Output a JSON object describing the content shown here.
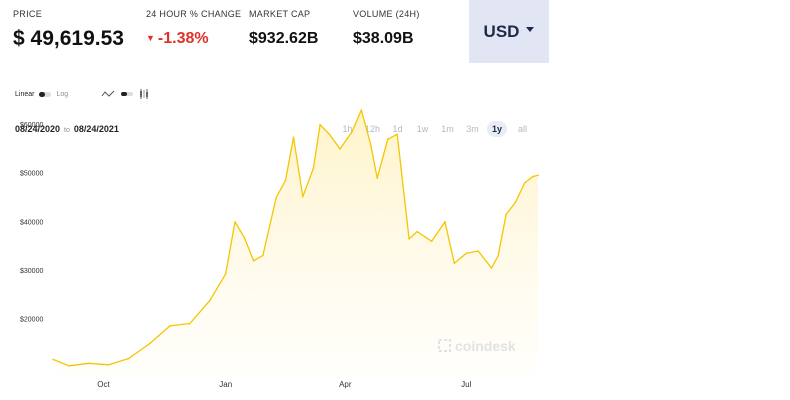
{
  "stats": {
    "price_label": "PRICE",
    "price_value": "$ 49,619.53",
    "change_label": "24 HOUR % CHANGE",
    "change_value": "-1.38%",
    "marketcap_label": "MARKET CAP",
    "marketcap_value": "$932.62B",
    "volume_label": "VOLUME (24H)",
    "volume_value": "$38.09B"
  },
  "currency": {
    "label": "USD"
  },
  "controls": {
    "scale_linear": "Linear",
    "scale_log": "Log",
    "scale_selected": "Linear",
    "date_start": "08/24/2020",
    "date_to": "to",
    "date_end": "08/24/2021",
    "ranges": [
      "1h",
      "12h",
      "1d",
      "1w",
      "1m",
      "3m",
      "1y",
      "all"
    ],
    "active_range": "1y",
    "chart_type_icons": [
      "line-chart-icon",
      "toggle-icon",
      "candlestick-icon"
    ]
  },
  "watermark": "coindesk",
  "colors": {
    "line": "#f5c500",
    "fill": "#fff3c7",
    "negative": "#e0302a",
    "currency_bg": "#e2e6f4"
  },
  "chart_data": {
    "type": "area",
    "x_ticks": [
      "Oct",
      "Jan",
      "Apr",
      "Jul"
    ],
    "y_ticks": [
      "$20000",
      "$30000",
      "$40000",
      "$50000",
      "$60000"
    ],
    "ylim": [
      8500,
      63000
    ],
    "x": [
      "2020-08-24",
      "2020-09-05",
      "2020-09-20",
      "2020-10-05",
      "2020-10-20",
      "2020-11-05",
      "2020-11-20",
      "2020-12-05",
      "2020-12-20",
      "2021-01-01",
      "2021-01-08",
      "2021-01-15",
      "2021-01-22",
      "2021-01-29",
      "2021-02-08",
      "2021-02-15",
      "2021-02-21",
      "2021-02-28",
      "2021-03-08",
      "2021-03-13",
      "2021-03-20",
      "2021-03-28",
      "2021-04-06",
      "2021-04-13",
      "2021-04-20",
      "2021-04-25",
      "2021-05-03",
      "2021-05-10",
      "2021-05-19",
      "2021-05-25",
      "2021-06-05",
      "2021-06-15",
      "2021-06-22",
      "2021-07-01",
      "2021-07-10",
      "2021-07-20",
      "2021-07-25",
      "2021-07-31",
      "2021-08-07",
      "2021-08-14",
      "2021-08-20",
      "2021-08-24"
    ],
    "series": [
      {
        "values": [
          11700,
          10400,
          10900,
          10600,
          11900,
          15000,
          18600,
          19100,
          23800,
          29300,
          40000,
          36800,
          32000,
          33100,
          45000,
          48500,
          57400,
          45200,
          51000,
          60000,
          58000,
          55000,
          58500,
          63000,
          56000,
          49000,
          57000,
          58000,
          36500,
          38000,
          36000,
          40000,
          31500,
          33500,
          34000,
          30500,
          33000,
          41500,
          44000,
          48000,
          49300,
          49600
        ]
      }
    ]
  }
}
